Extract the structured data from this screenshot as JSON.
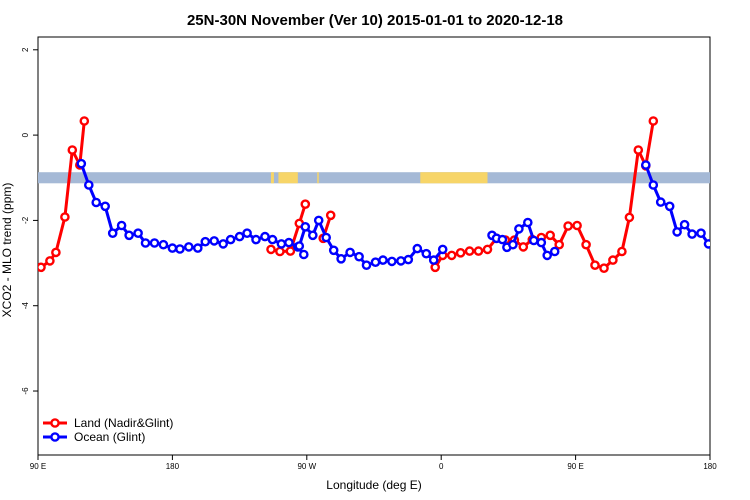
{
  "chart_data": {
    "type": "line",
    "title": "25N-30N November (Ver 10)   2015-01-01 to 2020-12-18",
    "xlabel": "Longitude (deg E)",
    "ylabel": "XCO2 - MLO trend (ppm)",
    "xlim": [
      90,
      540
    ],
    "ylim": [
      -7.5,
      2.3
    ],
    "x_ticks": [
      {
        "value": 90,
        "label": "90 E"
      },
      {
        "value": 180,
        "label": "180"
      },
      {
        "value": 270,
        "label": "90 W"
      },
      {
        "value": 360,
        "label": "0"
      },
      {
        "value": 450,
        "label": "90 E"
      },
      {
        "value": 540,
        "label": "180"
      }
    ],
    "y_ticks": [
      {
        "value": 2,
        "label": "2"
      },
      {
        "value": 0,
        "label": "0"
      },
      {
        "value": -2,
        "label": "-2"
      },
      {
        "value": -4,
        "label": "-4"
      },
      {
        "value": -6,
        "label": "-6"
      }
    ],
    "legend_position": "bottom-left",
    "land_mask_band": {
      "y_range": [
        -1.13,
        -0.87
      ],
      "ocean_color": "#a5b9d6",
      "land_color": "#f7d568",
      "land_segments": [
        [
          246,
          248
        ],
        [
          251,
          264
        ],
        [
          277,
          278
        ],
        [
          346,
          391
        ]
      ]
    },
    "series": [
      {
        "name": "Land (Nadir&Glint)",
        "color": "#ff0000",
        "segments": [
          [
            [
              92,
              -3.1
            ],
            [
              98,
              -2.95
            ],
            [
              102,
              -2.75
            ],
            [
              108,
              -1.92
            ],
            [
              113,
              -0.35
            ],
            [
              118,
              -0.7
            ],
            [
              121,
              0.33
            ]
          ],
          [
            [
              246,
              -2.68
            ],
            [
              252,
              -2.73
            ],
            [
              259,
              -2.72
            ],
            [
              265,
              -2.07
            ],
            [
              269,
              -1.62
            ]
          ],
          [
            [
              281,
              -2.42
            ],
            [
              286,
              -1.88
            ]
          ],
          [
            [
              356,
              -3.1
            ],
            [
              361,
              -2.82
            ],
            [
              367,
              -2.82
            ],
            [
              373,
              -2.76
            ],
            [
              379,
              -2.72
            ],
            [
              385,
              -2.72
            ],
            [
              391,
              -2.68
            ],
            [
              397,
              -2.42
            ],
            [
              403,
              -2.46
            ],
            [
              409,
              -2.46
            ],
            [
              415,
              -2.62
            ],
            [
              421,
              -2.45
            ],
            [
              427,
              -2.4
            ],
            [
              433,
              -2.35
            ],
            [
              439,
              -2.57
            ],
            [
              445,
              -2.13
            ],
            [
              451,
              -2.12
            ],
            [
              457,
              -2.57
            ],
            [
              463,
              -3.05
            ],
            [
              469,
              -3.12
            ],
            [
              475,
              -2.93
            ],
            [
              481,
              -2.73
            ],
            [
              486,
              -1.93
            ],
            [
              492,
              -0.35
            ],
            [
              497,
              -0.72
            ],
            [
              502,
              0.33
            ]
          ]
        ]
      },
      {
        "name": "Ocean (Glint)",
        "color": "#0000ff",
        "segments": [
          [
            [
              119,
              -0.67
            ],
            [
              124,
              -1.17
            ],
            [
              129,
              -1.58
            ],
            [
              135,
              -1.67
            ],
            [
              140,
              -2.3
            ],
            [
              146,
              -2.12
            ],
            [
              151,
              -2.35
            ],
            [
              157,
              -2.3
            ],
            [
              162,
              -2.53
            ],
            [
              168,
              -2.53
            ],
            [
              174,
              -2.57
            ],
            [
              180,
              -2.65
            ],
            [
              185,
              -2.67
            ],
            [
              191,
              -2.62
            ],
            [
              197,
              -2.65
            ],
            [
              202,
              -2.5
            ],
            [
              208,
              -2.48
            ],
            [
              214,
              -2.55
            ],
            [
              219,
              -2.45
            ],
            [
              225,
              -2.38
            ],
            [
              230,
              -2.3
            ],
            [
              236,
              -2.45
            ],
            [
              242,
              -2.38
            ],
            [
              247,
              -2.45
            ],
            [
              253,
              -2.55
            ],
            [
              258,
              -2.52
            ],
            [
              264,
              -2.62
            ],
            [
              268,
              -2.8
            ]
          ],
          [
            [
              265,
              -2.6
            ],
            [
              269,
              -2.15
            ],
            [
              274,
              -2.35
            ],
            [
              278,
              -2.0
            ],
            [
              283,
              -2.4
            ],
            [
              288,
              -2.7
            ],
            [
              293,
              -2.9
            ],
            [
              299,
              -2.75
            ],
            [
              305,
              -2.85
            ],
            [
              310,
              -3.05
            ],
            [
              316,
              -2.98
            ],
            [
              321,
              -2.93
            ],
            [
              327,
              -2.96
            ],
            [
              333,
              -2.95
            ],
            [
              338,
              -2.92
            ],
            [
              344,
              -2.66
            ],
            [
              350,
              -2.78
            ],
            [
              355,
              -2.93
            ],
            [
              361,
              -2.68
            ]
          ],
          [
            [
              394,
              -2.35
            ],
            [
              397,
              -2.42
            ],
            [
              401,
              -2.45
            ],
            [
              404,
              -2.63
            ],
            [
              408,
              -2.57
            ],
            [
              412,
              -2.2
            ],
            [
              418,
              -2.05
            ],
            [
              422,
              -2.47
            ],
            [
              427,
              -2.52
            ],
            [
              431,
              -2.82
            ],
            [
              436,
              -2.73
            ]
          ],
          [
            [
              497,
              -0.7
            ],
            [
              502,
              -1.17
            ],
            [
              507,
              -1.57
            ],
            [
              513,
              -1.67
            ],
            [
              518,
              -2.27
            ],
            [
              523,
              -2.1
            ],
            [
              528,
              -2.32
            ],
            [
              534,
              -2.3
            ],
            [
              539,
              -2.55
            ],
            [
              545,
              -2.55
            ],
            [
              550,
              -2.57
            ],
            [
              556,
              -2.65
            ],
            [
              561,
              -2.68
            ]
          ]
        ]
      }
    ]
  }
}
